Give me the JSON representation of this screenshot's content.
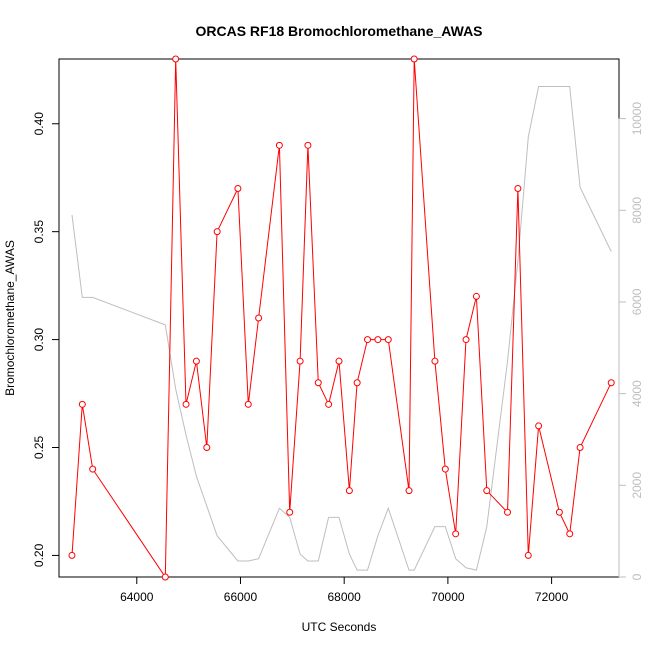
{
  "chart_data": {
    "type": "line",
    "title": "ORCAS RF18 Bromochloromethane_AWAS",
    "xlabel": "UTC Seconds",
    "ylabel": "Bromochloromethane_AWAS",
    "xlim": [
      62500,
      73300
    ],
    "ylim": [
      0.19,
      0.43
    ],
    "y2lim": [
      0,
      11300
    ],
    "x_ticks": [
      64000,
      66000,
      68000,
      70000,
      72000
    ],
    "y_ticks": [
      0.2,
      0.25,
      0.3,
      0.35,
      0.4
    ],
    "y_tick_labels": [
      "0.20",
      "0.25",
      "0.30",
      "0.35",
      "0.40"
    ],
    "y2_ticks": [
      0,
      2000,
      4000,
      6000,
      8000,
      10000
    ],
    "grid": false,
    "colors": {
      "primary": "#ff0000",
      "secondary": "#bebebe",
      "axis": "#000000",
      "y2_axis": "#bebebe"
    },
    "series": [
      {
        "axis": "left",
        "style": "line+points",
        "x": [
          62750,
          62950,
          63150,
          64550,
          64750,
          64950,
          65150,
          65350,
          65550,
          65950,
          66150,
          66350,
          66750,
          66950,
          67150,
          67300,
          67500,
          67700,
          67900,
          68100,
          68250,
          68450,
          68650,
          68850,
          69250,
          69350,
          69750,
          69950,
          70150,
          70350,
          70550,
          70750,
          71150,
          71350,
          71550,
          71750,
          72150,
          72350,
          72550,
          73150
        ],
        "y": [
          0.2,
          0.27,
          0.24,
          0.19,
          0.43,
          0.27,
          0.29,
          0.25,
          0.35,
          0.37,
          0.27,
          0.31,
          0.39,
          0.22,
          0.29,
          0.39,
          0.28,
          0.27,
          0.29,
          0.23,
          0.28,
          0.3,
          0.3,
          0.3,
          0.23,
          0.43,
          0.29,
          0.24,
          0.21,
          0.3,
          0.32,
          0.23,
          0.22,
          0.37,
          0.2,
          0.26,
          0.22,
          0.21,
          0.25,
          0.28
        ]
      },
      {
        "axis": "right",
        "style": "line",
        "x": [
          62750,
          62950,
          63150,
          64550,
          64750,
          64950,
          65150,
          65550,
          65950,
          66150,
          66350,
          66750,
          66950,
          67150,
          67300,
          67500,
          67700,
          67900,
          68100,
          68250,
          68450,
          68650,
          68850,
          69250,
          69350,
          69750,
          69950,
          70150,
          70350,
          70550,
          70750,
          71150,
          71350,
          71550,
          71750,
          72150,
          72350,
          72550,
          73150
        ],
        "y": [
          7900,
          6100,
          6100,
          5500,
          4100,
          3100,
          2200,
          900,
          350,
          350,
          400,
          1500,
          1300,
          500,
          350,
          350,
          1300,
          1300,
          500,
          150,
          150,
          900,
          1500,
          150,
          150,
          1100,
          1100,
          400,
          200,
          150,
          1100,
          4700,
          6900,
          9600,
          10700,
          10700,
          10700,
          8500,
          7100
        ]
      }
    ]
  }
}
